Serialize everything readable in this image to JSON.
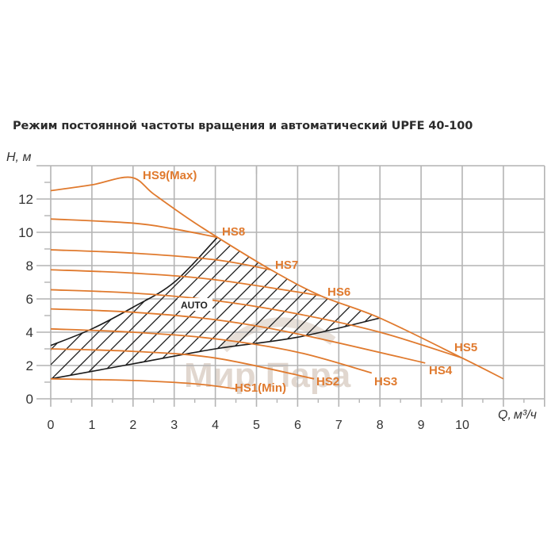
{
  "title": "Режим постоянной частоты вращения и автоматический  UPFE 40-100",
  "watermark": "Мир Пара",
  "colors": {
    "curve": "#e07a2e",
    "auto": "#1a1a1a",
    "grid": "#b4b4b4",
    "label": "#e07a2e"
  },
  "chart_data": {
    "type": "line",
    "title": "Режим постоянной частоты вращения и автоматический  UPFE 40-100",
    "xlabel": "Q, м³/ч",
    "ylabel": "H, м",
    "xlim": [
      0,
      12
    ],
    "ylim": [
      0,
      14
    ],
    "xticks": [
      0,
      1,
      2,
      3,
      4,
      5,
      6,
      7,
      8,
      9,
      10
    ],
    "yticks": [
      0,
      2,
      4,
      6,
      8,
      10,
      12
    ],
    "grid": true,
    "series": [
      {
        "name": "HS9(Max)",
        "points": [
          [
            0,
            12.5
          ],
          [
            1,
            12.85
          ],
          [
            1.95,
            13.3
          ],
          [
            2.5,
            12.3
          ],
          [
            3.3,
            10.9
          ],
          [
            4.05,
            9.7
          ],
          [
            5.35,
            7.75
          ],
          [
            6.55,
            6.2
          ],
          [
            8,
            4.85
          ],
          [
            10,
            2.45
          ],
          [
            11,
            1.2
          ]
        ]
      },
      {
        "name": "HS8",
        "points": [
          [
            0,
            10.8
          ],
          [
            2,
            10.55
          ],
          [
            3,
            10.2
          ],
          [
            4.05,
            9.7
          ]
        ]
      },
      {
        "name": "HS7",
        "points": [
          [
            0,
            8.95
          ],
          [
            2,
            8.75
          ],
          [
            4,
            8.35
          ],
          [
            5.35,
            7.75
          ]
        ]
      },
      {
        "name": "HS6",
        "points": [
          [
            0,
            7.75
          ],
          [
            2,
            7.55
          ],
          [
            4,
            7.15
          ],
          [
            6.55,
            6.2
          ]
        ]
      },
      {
        "name": "HS5",
        "points": [
          [
            0,
            6.55
          ],
          [
            2,
            6.35
          ],
          [
            4,
            5.9
          ],
          [
            6,
            5.1
          ],
          [
            8,
            4.0
          ],
          [
            10,
            2.45
          ]
        ]
      },
      {
        "name": "HS4",
        "points": [
          [
            0,
            5.4
          ],
          [
            2,
            5.2
          ],
          [
            4,
            4.75
          ],
          [
            6,
            3.9
          ],
          [
            9.1,
            2.15
          ]
        ]
      },
      {
        "name": "HS3",
        "points": [
          [
            0,
            4.2
          ],
          [
            2,
            4.0
          ],
          [
            4,
            3.6
          ],
          [
            6,
            2.8
          ],
          [
            7.8,
            1.55
          ]
        ]
      },
      {
        "name": "HS2",
        "points": [
          [
            0,
            3.0
          ],
          [
            2,
            2.85
          ],
          [
            4,
            2.45
          ],
          [
            6.4,
            1.2
          ]
        ]
      },
      {
        "name": "HS1(Min)",
        "points": [
          [
            0,
            1.2
          ],
          [
            2,
            1.1
          ],
          [
            3.5,
            0.9
          ],
          [
            4.5,
            0.6
          ]
        ]
      }
    ],
    "auto_region": {
      "label": "AUTO",
      "top_boundary": [
        [
          0,
          3.2
        ],
        [
          1,
          4.2
        ],
        [
          2,
          5.5
        ],
        [
          3,
          7.0
        ],
        [
          4.05,
          9.7
        ]
      ],
      "bottom_boundary": [
        [
          0,
          1.2
        ],
        [
          2,
          2.1
        ],
        [
          4,
          3.0
        ],
        [
          6,
          3.7
        ],
        [
          8,
          4.85
        ]
      ]
    }
  },
  "axes": {
    "y_title": "H, м",
    "x_title_q": "Q,",
    "x_title_unit": "м³/ч",
    "y_labels": [
      "0",
      "2",
      "4",
      "6",
      "8",
      "10",
      "12"
    ],
    "x_labels": [
      "0",
      "1",
      "2",
      "3",
      "4",
      "5",
      "6",
      "7",
      "8",
      "9",
      "10"
    ]
  },
  "labels": {
    "hs9": "HS9(Max)",
    "hs8": "HS8",
    "hs7": "HS7",
    "hs6": "HS6",
    "hs5": "HS5",
    "hs4": "HS4",
    "hs3": "HS3",
    "hs2": "HS2",
    "hs1": "HS1(Min)",
    "auto": "AUTO"
  }
}
